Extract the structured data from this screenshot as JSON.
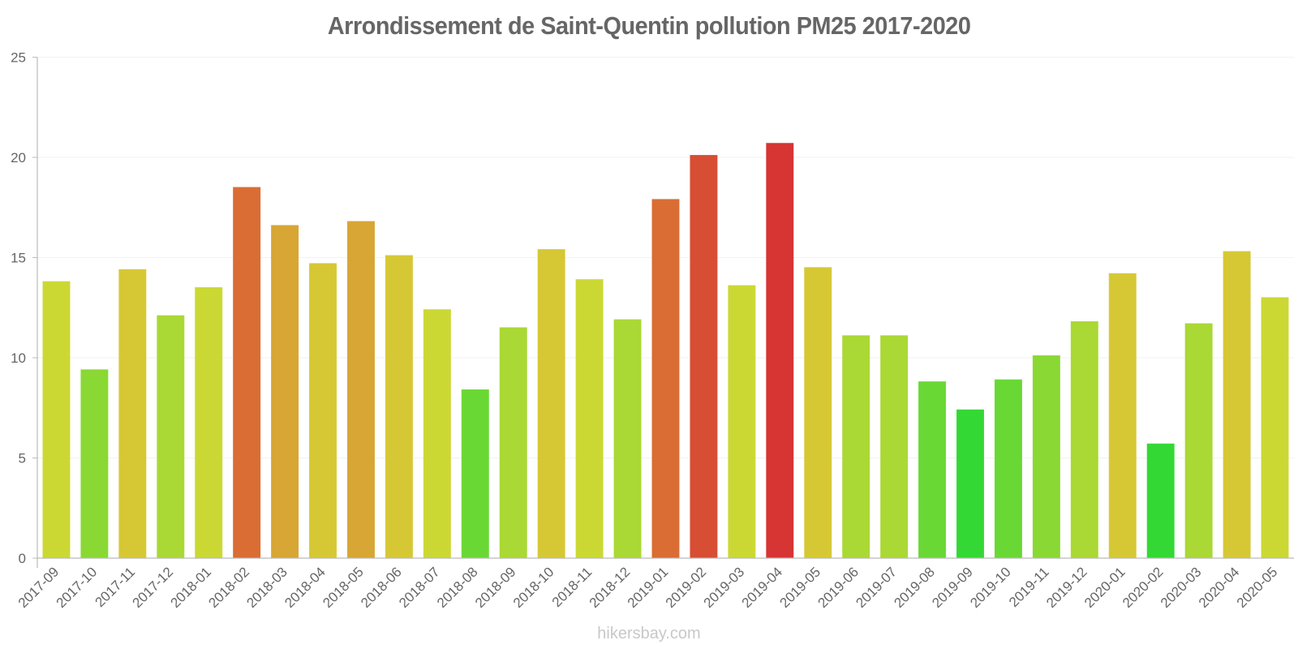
{
  "chart_data": {
    "type": "bar",
    "title": "Arrondissement de Saint-Quentin pollution PM25 2017-2020",
    "xlabel": "",
    "ylabel": "",
    "ylim": [
      0,
      25
    ],
    "yticks": [
      0,
      5,
      10,
      15,
      20,
      25
    ],
    "grid": true,
    "legend": null,
    "categories": [
      "2017-09",
      "2017-10",
      "2017-11",
      "2017-12",
      "2018-01",
      "2018-02",
      "2018-03",
      "2018-04",
      "2018-05",
      "2018-06",
      "2018-07",
      "2018-08",
      "2018-09",
      "2018-10",
      "2018-11",
      "2018-12",
      "2019-01",
      "2019-02",
      "2019-03",
      "2019-04",
      "2019-05",
      "2019-06",
      "2019-07",
      "2019-08",
      "2019-09",
      "2019-10",
      "2019-11",
      "2019-12",
      "2020-01",
      "2020-02",
      "2020-03",
      "2020-04",
      "2020-05"
    ],
    "values": [
      13.8,
      9.4,
      14.4,
      12.1,
      13.5,
      18.5,
      16.6,
      14.7,
      16.8,
      15.1,
      12.4,
      8.4,
      11.5,
      15.4,
      13.9,
      11.9,
      17.9,
      20.1,
      13.6,
      20.7,
      14.5,
      11.1,
      11.1,
      8.8,
      7.4,
      8.9,
      10.1,
      11.8,
      14.2,
      5.7,
      11.7,
      15.3,
      13.0
    ],
    "colors": [
      "#cfdc35",
      "#8ddc35",
      "#dacc35",
      "#addc35",
      "#cfdc35",
      "#dd6f35",
      "#dba935",
      "#dacc35",
      "#dba935",
      "#dacc35",
      "#cfdc35",
      "#6bdc35",
      "#addc35",
      "#dacc35",
      "#cfdc35",
      "#addc35",
      "#dd6f35",
      "#db5035",
      "#cfdc35",
      "#db3535",
      "#dacc35",
      "#addc35",
      "#addc35",
      "#6bdc35",
      "#35dc35",
      "#6bdc35",
      "#8ddc35",
      "#addc35",
      "#dacc35",
      "#35dc35",
      "#addc35",
      "#dacc35",
      "#cfdc35"
    ]
  },
  "footer": {
    "watermark": "hikersbay.com"
  }
}
